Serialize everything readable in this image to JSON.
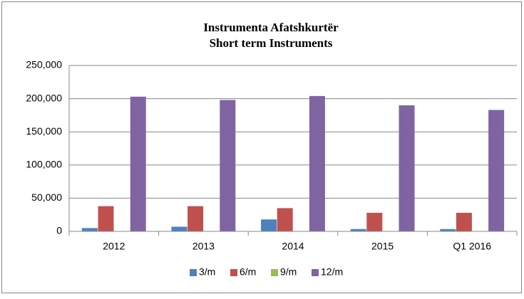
{
  "chart_data": {
    "type": "bar",
    "title": "Instrumenta Afatshkurtër",
    "subtitle": "Short term Instruments",
    "categories": [
      "2012",
      "2013",
      "2014",
      "2015",
      "Q1 2016"
    ],
    "series": [
      {
        "name": "3/m",
        "color": "#4f81bd",
        "values": [
          5000,
          7000,
          18000,
          3500,
          3500
        ]
      },
      {
        "name": "6/m",
        "color": "#c0504d",
        "values": [
          38000,
          38000,
          35000,
          28000,
          28000
        ]
      },
      {
        "name": "9/m",
        "color": "#9bbb59",
        "values": [
          0,
          0,
          0,
          0,
          0
        ]
      },
      {
        "name": "12/m",
        "color": "#8064a2",
        "values": [
          203000,
          198000,
          204000,
          190000,
          183000
        ]
      }
    ],
    "ylim": [
      0,
      250000
    ],
    "yticks": [
      0,
      {
        "value": 50000,
        "label": "50,000"
      },
      {
        "value": 100000,
        "label": "100,000"
      },
      {
        "value": 150000,
        "label": "150,000"
      },
      {
        "value": 200000,
        "label": "200,000"
      },
      {
        "value": 250000,
        "label": "250,000"
      }
    ],
    "grid": true,
    "legend": "bottom"
  }
}
